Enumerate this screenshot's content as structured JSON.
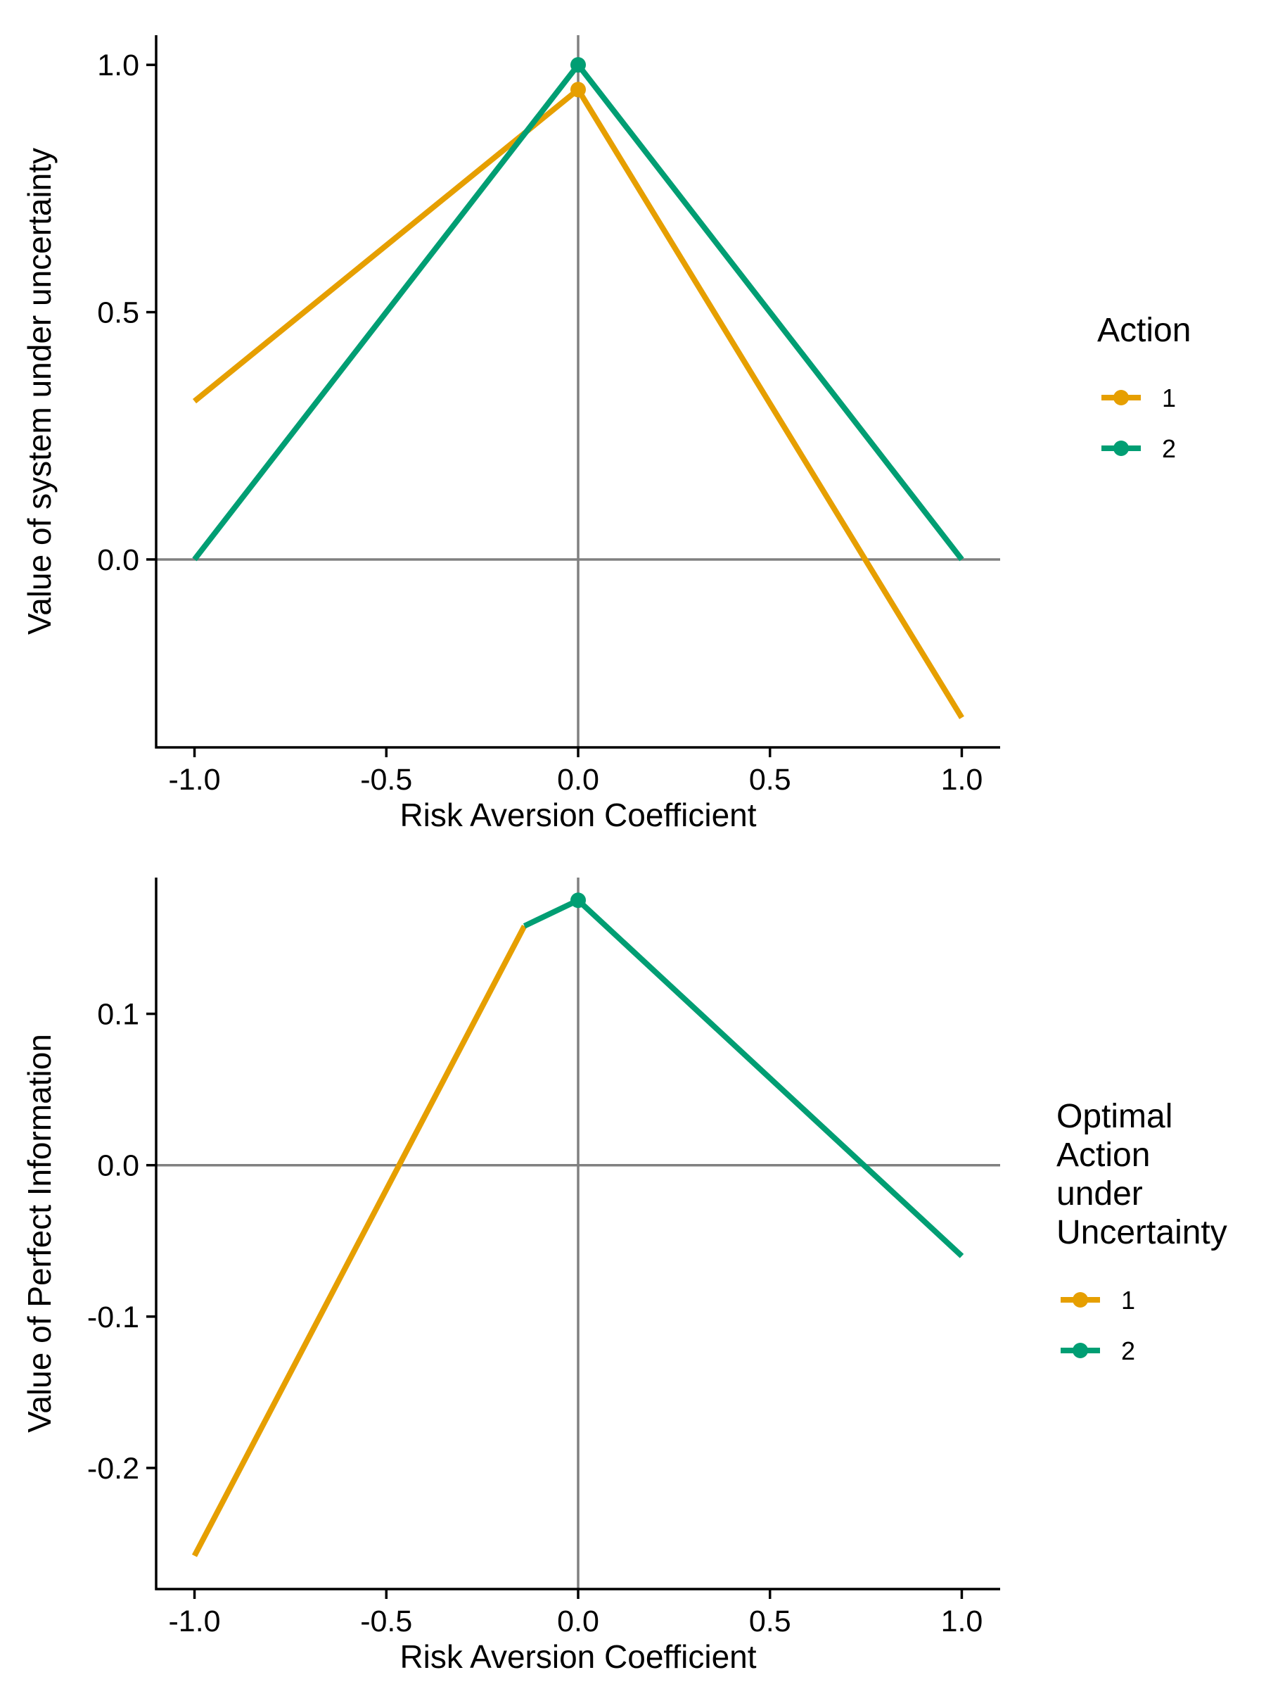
{
  "chart_data": [
    {
      "type": "line",
      "xlabel": "Risk Aversion Coefficient",
      "ylabel": "Value of system under uncertainty",
      "xlim": [
        -1.1,
        1.1
      ],
      "ylim": [
        -0.38,
        1.06
      ],
      "xticks": [
        -1.0,
        -0.5,
        0.0,
        0.5,
        1.0
      ],
      "xtick_labels": [
        "-1.0",
        "-0.5",
        "0.0",
        "0.5",
        "1.0"
      ],
      "yticks": [
        0.0,
        0.5,
        1.0
      ],
      "ytick_labels": [
        "0.0",
        "0.5",
        "1.0"
      ],
      "reference_lines": {
        "x": 0,
        "y": 0
      },
      "grid": false,
      "legend": {
        "title": "Action",
        "position": "right"
      },
      "series": [
        {
          "name": "1",
          "color": "#E69F00",
          "x": [
            -1.0,
            0.0,
            1.0
          ],
          "y": [
            0.32,
            0.95,
            -0.32
          ],
          "markers_at": [
            0.0
          ]
        },
        {
          "name": "2",
          "color": "#009E73",
          "x": [
            -1.0,
            0.0,
            1.0
          ],
          "y": [
            0.0,
            1.0,
            0.0
          ],
          "markers_at": [
            0.0
          ]
        }
      ]
    },
    {
      "type": "line",
      "xlabel": "Risk Aversion Coefficient",
      "ylabel": "Value of Perfect Information",
      "xlim": [
        -1.1,
        1.1
      ],
      "ylim": [
        -0.28,
        0.19
      ],
      "xticks": [
        -1.0,
        -0.5,
        0.0,
        0.5,
        1.0
      ],
      "xtick_labels": [
        "-1.0",
        "-0.5",
        "0.0",
        "0.5",
        "1.0"
      ],
      "yticks": [
        -0.2,
        -0.1,
        0.0,
        0.1
      ],
      "ytick_labels": [
        "-0.2",
        "-0.1",
        "0.0",
        "0.1"
      ],
      "reference_lines": {
        "x": 0,
        "y": 0
      },
      "grid": false,
      "legend": {
        "title": "Optimal Action under Uncertainty",
        "title_lines": [
          "Optimal",
          "Action",
          "under",
          "Uncertainty"
        ],
        "position": "right"
      },
      "series": [
        {
          "name": "1",
          "color": "#E69F00",
          "x": [
            -1.0,
            -0.14
          ],
          "y": [
            -0.258,
            0.158
          ],
          "markers_at": []
        },
        {
          "name": "2",
          "color": "#009E73",
          "x": [
            -0.14,
            0.0,
            1.0
          ],
          "y": [
            0.158,
            0.175,
            -0.06
          ],
          "markers_at": [
            0.0
          ]
        }
      ]
    }
  ]
}
